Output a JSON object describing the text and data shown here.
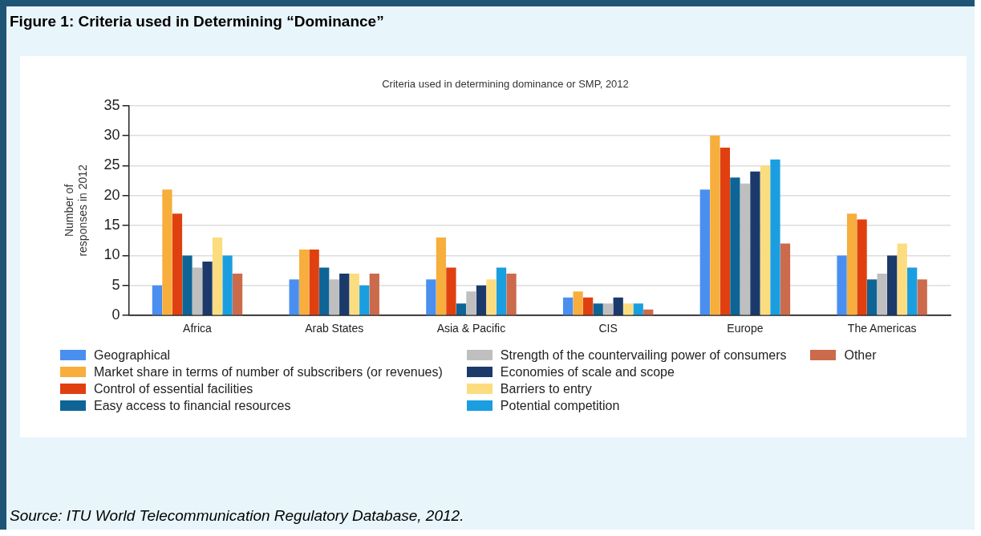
{
  "chart_data": {
    "type": "bar",
    "title": "Figure 1: Criteria used in Determining “Dominance”",
    "subtitle": "Criteria used in determining dominance or SMP, 2012",
    "ylabel": "Number of responses in 2012",
    "categories": [
      "Africa",
      "Arab States",
      "Asia & Pacific",
      "CIS",
      "Europe",
      "The Americas"
    ],
    "series": [
      {
        "name": "Geographical",
        "color": "#4a8ff0",
        "values": [
          5,
          6,
          6,
          3,
          21,
          10
        ]
      },
      {
        "name": "Market share in terms of number of subscribers (or revenues)",
        "color": "#f7ae3d",
        "values": [
          21,
          11,
          13,
          4,
          30,
          17
        ]
      },
      {
        "name": "Control of essential facilities",
        "color": "#e04010",
        "values": [
          17,
          11,
          8,
          3,
          28,
          16
        ]
      },
      {
        "name": "Easy access to financial resources",
        "color": "#0f6496",
        "values": [
          10,
          8,
          2,
          2,
          23,
          6
        ]
      },
      {
        "name": "Strength of the countervailing power of consumers",
        "color": "#bfbfbf",
        "values": [
          8,
          6,
          4,
          2,
          22,
          7
        ]
      },
      {
        "name": "Economies of scale and scope",
        "color": "#1b3a6b",
        "values": [
          9,
          7,
          5,
          3,
          24,
          10
        ]
      },
      {
        "name": "Barriers to entry",
        "color": "#fbdd80",
        "values": [
          13,
          7,
          6,
          2,
          25,
          12
        ]
      },
      {
        "name": "Potential competition",
        "color": "#1a9ee0",
        "values": [
          10,
          5,
          8,
          2,
          26,
          8
        ]
      },
      {
        "name": "Other",
        "color": "#cc6a4c",
        "values": [
          7,
          7,
          7,
          1,
          12,
          6
        ]
      }
    ],
    "ylim": [
      0,
      35
    ],
    "yticks": [
      0,
      5,
      10,
      15,
      20,
      25,
      30,
      35
    ],
    "grid": "y",
    "legend": "bottom",
    "annotations": [
      "Source: ITU World Telecommunication Regulatory Database, 2012."
    ]
  }
}
